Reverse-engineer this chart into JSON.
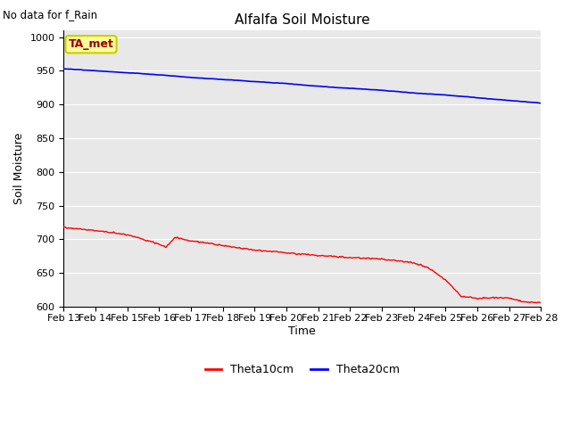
{
  "title": "Alfalfa Soil Moisture",
  "subtitle": "No data for f_Rain",
  "ylabel": "Soil Moisture",
  "xlabel": "Time",
  "ylim": [
    600,
    1010
  ],
  "yticks": [
    600,
    650,
    700,
    750,
    800,
    850,
    900,
    950,
    1000
  ],
  "x_labels": [
    "Feb 13",
    "Feb 14",
    "Feb 15",
    "Feb 16",
    "Feb 17",
    "Feb 18",
    "Feb 19",
    "Feb 20",
    "Feb 21",
    "Feb 22",
    "Feb 23",
    "Feb 24",
    "Feb 25",
    "Feb 26",
    "Feb 27",
    "Feb 28"
  ],
  "legend_labels": [
    "Theta10cm",
    "Theta20cm"
  ],
  "legend_colors": [
    "#ff0000",
    "#0000ff"
  ],
  "ta_met_box_color": "#ffff99",
  "ta_met_text_color": "#990000",
  "background_color": "#e8e8e8",
  "line_color_10cm": "#ff0000",
  "line_color_20cm": "#0000ff",
  "theta10_keypoints_x": [
    0,
    1,
    2,
    3,
    3.2,
    3.5,
    4,
    5,
    6,
    7,
    8,
    9,
    10,
    10.5,
    11,
    11.5,
    12,
    12.3,
    12.5,
    12.8,
    13,
    13.5,
    14,
    14.5,
    15
  ],
  "theta10_keypoints_y": [
    718,
    713,
    707,
    693,
    688,
    703,
    698,
    691,
    684,
    680,
    676,
    673,
    671,
    668,
    665,
    657,
    640,
    625,
    615,
    614,
    612,
    614,
    613,
    607,
    606
  ],
  "theta20_keypoints_x": [
    0,
    1,
    2,
    3,
    4,
    5,
    6,
    7,
    8,
    9,
    10,
    11,
    12,
    13,
    14,
    15
  ],
  "theta20_keypoints_y": [
    953,
    950,
    947,
    944,
    940,
    937,
    934,
    931,
    927,
    924,
    921,
    917,
    914,
    910,
    906,
    902
  ]
}
